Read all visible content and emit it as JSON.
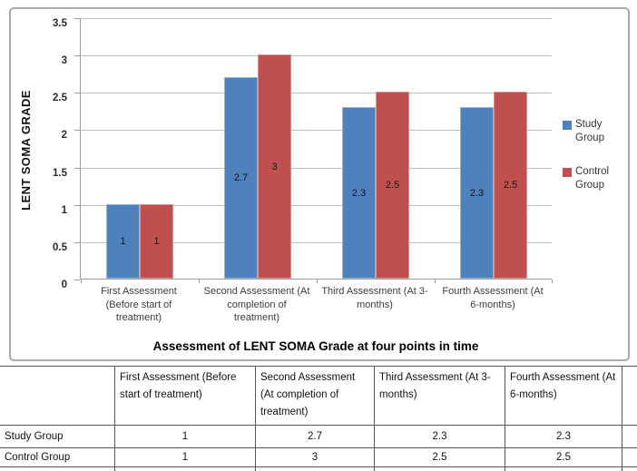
{
  "chart_data": {
    "type": "bar",
    "title": "Assessment of LENT SOMA Grade at four points in time",
    "ylabel": "LENT SOMA GRADE",
    "xlabel": "",
    "categories": [
      "First Assessment (Before start of treatment)",
      "Second Assessment (At completion of treatment)",
      "Third Assessment (At 3-months)",
      "Fourth Assessment (At 6-months)"
    ],
    "series": [
      {
        "name": "Study Group",
        "color": "#4F81BD",
        "border_color": "#95B3D7",
        "values": [
          1,
          2.7,
          2.3,
          2.3
        ]
      },
      {
        "name": "Control Group",
        "color": "#C0504D",
        "border_color": "#D99694",
        "values": [
          1,
          3,
          2.5,
          2.5
        ]
      }
    ],
    "ylim": [
      0,
      3.5
    ],
    "y_ticks": [
      "0",
      "0.5",
      "1",
      "1.5",
      "2",
      "2.5",
      "3",
      "3.5"
    ],
    "grid": true,
    "legend_position": "right",
    "data_labels": true,
    "gridline_color": "#BFBFBF",
    "axis_color": "#9D9D9D"
  },
  "table": {
    "corner_header": "",
    "column_headers": [
      "First Assessment (Before start of treatment)",
      "Second Assessment (At completion of treatment)",
      "Third Assessment (At 3-months)",
      "Fourth Assessment (At 6-months)"
    ],
    "rows": [
      {
        "label": "Study Group",
        "values": [
          "1",
          "2.7",
          "2.3",
          "2.3"
        ]
      },
      {
        "label": "Control Group",
        "values": [
          "1",
          "3",
          "2.5",
          "2.5"
        ]
      }
    ]
  }
}
